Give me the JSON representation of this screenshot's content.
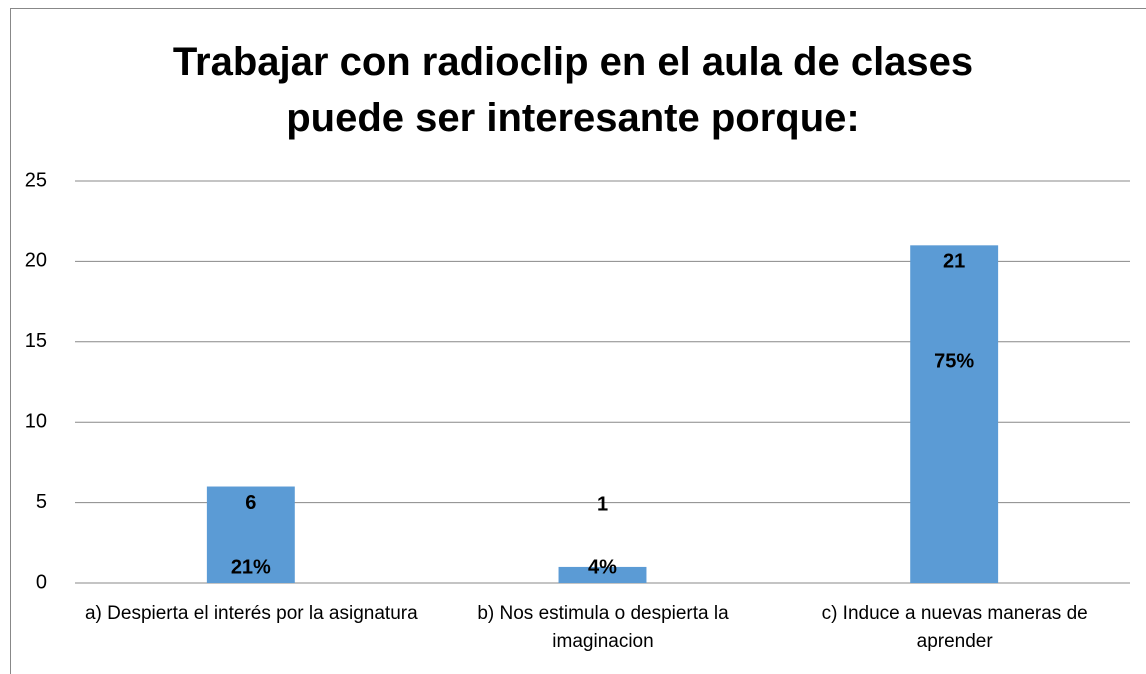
{
  "chart_data": {
    "type": "bar",
    "title": "Trabajar con radioclip en el aula de clases puede ser interesante porque:",
    "categories": [
      "a)  Despierta el interés por la asignatura",
      "b)  Nos estimula o despierta la imaginacion",
      "c)  Induce a nuevas maneras de aprender"
    ],
    "values": [
      6,
      1,
      21
    ],
    "percent_labels": [
      "21%",
      "4%",
      "75%"
    ],
    "color": "#5b9bd5",
    "ylim": [
      0,
      25
    ],
    "yticks": [
      0,
      5,
      10,
      15,
      20,
      25
    ],
    "grid": true
  }
}
